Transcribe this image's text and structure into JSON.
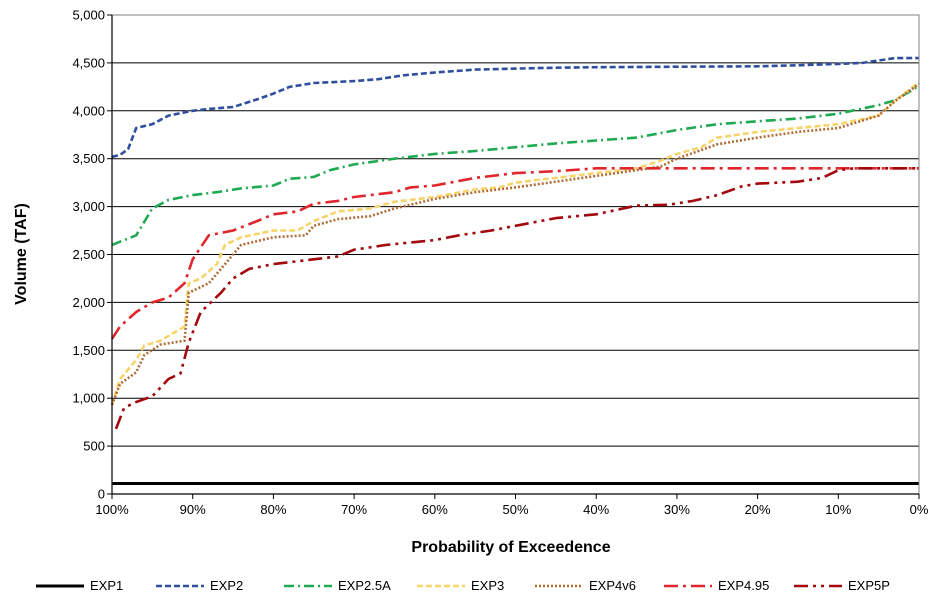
{
  "chart_data": {
    "type": "line",
    "title": "",
    "xlabel": "Probability of Exceedence",
    "ylabel": "Volume (TAF)",
    "xlim": [
      100,
      0
    ],
    "ylim": [
      0,
      5000
    ],
    "x_reversed": true,
    "grid": "horizontal",
    "legend_position": "bottom",
    "x_ticks": [
      100,
      90,
      80,
      70,
      60,
      50,
      40,
      30,
      20,
      10,
      0
    ],
    "x_tick_labels": [
      "100%",
      "90%",
      "80%",
      "70%",
      "60%",
      "50%",
      "40%",
      "30%",
      "20%",
      "10%",
      "0%"
    ],
    "y_ticks": [
      0,
      500,
      1000,
      1500,
      2000,
      2500,
      3000,
      3500,
      4000,
      4500,
      5000
    ],
    "y_tick_labels": [
      "0",
      "500",
      "1,000",
      "1,500",
      "2,000",
      "2,500",
      "3,000",
      "3,500",
      "4,000",
      "4,500",
      "5,000"
    ],
    "series": [
      {
        "name": "EXP1",
        "color": "#000000",
        "dash": "solid",
        "points": [
          [
            100,
            110
          ],
          [
            0,
            110
          ]
        ]
      },
      {
        "name": "EXP2",
        "color": "#2f4f9e",
        "dash": "dash",
        "points": [
          [
            100,
            3520
          ],
          [
            99,
            3540
          ],
          [
            98,
            3600
          ],
          [
            97,
            3820
          ],
          [
            95,
            3860
          ],
          [
            93,
            3950
          ],
          [
            90,
            4000
          ],
          [
            88,
            4020
          ],
          [
            85,
            4040
          ],
          [
            82,
            4120
          ],
          [
            80,
            4180
          ],
          [
            78,
            4250
          ],
          [
            75,
            4290
          ],
          [
            70,
            4310
          ],
          [
            67,
            4330
          ],
          [
            64,
            4370
          ],
          [
            60,
            4400
          ],
          [
            55,
            4430
          ],
          [
            50,
            4440
          ],
          [
            45,
            4450
          ],
          [
            40,
            4455
          ],
          [
            30,
            4460
          ],
          [
            20,
            4465
          ],
          [
            15,
            4475
          ],
          [
            10,
            4490
          ],
          [
            7,
            4500
          ],
          [
            3,
            4550
          ],
          [
            0,
            4550
          ]
        ]
      },
      {
        "name": "EXP2.5A",
        "color": "#1faa52",
        "dash": "dashdot",
        "points": [
          [
            100,
            2600
          ],
          [
            97,
            2700
          ],
          [
            95,
            2980
          ],
          [
            93,
            3070
          ],
          [
            90,
            3120
          ],
          [
            87,
            3150
          ],
          [
            84,
            3190
          ],
          [
            80,
            3220
          ],
          [
            78,
            3290
          ],
          [
            75,
            3310
          ],
          [
            73,
            3380
          ],
          [
            70,
            3440
          ],
          [
            65,
            3500
          ],
          [
            60,
            3550
          ],
          [
            55,
            3580
          ],
          [
            50,
            3620
          ],
          [
            45,
            3660
          ],
          [
            40,
            3690
          ],
          [
            35,
            3720
          ],
          [
            30,
            3800
          ],
          [
            25,
            3860
          ],
          [
            20,
            3890
          ],
          [
            15,
            3920
          ],
          [
            10,
            3970
          ],
          [
            5,
            4060
          ],
          [
            3,
            4110
          ],
          [
            0,
            4260
          ]
        ]
      },
      {
        "name": "EXP3",
        "color": "#f7d46a",
        "dash": "dash",
        "points": [
          [
            100,
            930
          ],
          [
            99,
            1200
          ],
          [
            97,
            1400
          ],
          [
            96,
            1550
          ],
          [
            94,
            1600
          ],
          [
            92,
            1700
          ],
          [
            91,
            1750
          ],
          [
            90.5,
            2200
          ],
          [
            89,
            2250
          ],
          [
            87,
            2400
          ],
          [
            86,
            2600
          ],
          [
            84,
            2680
          ],
          [
            80,
            2750
          ],
          [
            77,
            2750
          ],
          [
            75,
            2850
          ],
          [
            72,
            2950
          ],
          [
            68,
            2980
          ],
          [
            65,
            3050
          ],
          [
            60,
            3100
          ],
          [
            55,
            3180
          ],
          [
            52,
            3200
          ],
          [
            50,
            3250
          ],
          [
            45,
            3300
          ],
          [
            40,
            3350
          ],
          [
            35,
            3400
          ],
          [
            32,
            3480
          ],
          [
            30,
            3550
          ],
          [
            27,
            3620
          ],
          [
            25,
            3720
          ],
          [
            20,
            3780
          ],
          [
            15,
            3820
          ],
          [
            10,
            3860
          ],
          [
            5,
            3950
          ],
          [
            3,
            4100
          ],
          [
            0,
            4300
          ]
        ]
      },
      {
        "name": "EXP4v6",
        "color": "#b06c36",
        "dash": "dot",
        "points": [
          [
            100,
            930
          ],
          [
            99,
            1150
          ],
          [
            97,
            1270
          ],
          [
            96,
            1450
          ],
          [
            94,
            1560
          ],
          [
            91,
            1600
          ],
          [
            90.5,
            2100
          ],
          [
            88,
            2200
          ],
          [
            86,
            2400
          ],
          [
            84,
            2600
          ],
          [
            80,
            2680
          ],
          [
            76,
            2700
          ],
          [
            75,
            2800
          ],
          [
            72,
            2870
          ],
          [
            68,
            2900
          ],
          [
            65,
            2980
          ],
          [
            60,
            3080
          ],
          [
            55,
            3150
          ],
          [
            50,
            3200
          ],
          [
            45,
            3260
          ],
          [
            40,
            3320
          ],
          [
            35,
            3380
          ],
          [
            32,
            3420
          ],
          [
            30,
            3500
          ],
          [
            28,
            3560
          ],
          [
            25,
            3650
          ],
          [
            20,
            3720
          ],
          [
            15,
            3780
          ],
          [
            10,
            3820
          ],
          [
            5,
            3950
          ],
          [
            3,
            4100
          ],
          [
            0,
            4280
          ]
        ]
      },
      {
        "name": "EXP4.95",
        "color": "#e0262b",
        "dash": "longdashdot",
        "points": [
          [
            100,
            1620
          ],
          [
            99,
            1750
          ],
          [
            97,
            1900
          ],
          [
            95,
            2000
          ],
          [
            93,
            2050
          ],
          [
            91,
            2200
          ],
          [
            90,
            2450
          ],
          [
            88,
            2700
          ],
          [
            85,
            2750
          ],
          [
            82,
            2850
          ],
          [
            80,
            2920
          ],
          [
            77,
            2950
          ],
          [
            75,
            3030
          ],
          [
            72,
            3060
          ],
          [
            70,
            3100
          ],
          [
            65,
            3150
          ],
          [
            63,
            3200
          ],
          [
            60,
            3220
          ],
          [
            55,
            3300
          ],
          [
            50,
            3350
          ],
          [
            45,
            3370
          ],
          [
            40,
            3400
          ],
          [
            30,
            3400
          ],
          [
            20,
            3400
          ],
          [
            10,
            3400
          ],
          [
            0,
            3400
          ]
        ]
      },
      {
        "name": "EXP5P",
        "color": "#a3080c",
        "dash": "longdashdotdot",
        "points": [
          [
            99.5,
            680
          ],
          [
            98.5,
            900
          ],
          [
            97,
            960
          ],
          [
            95,
            1020
          ],
          [
            93,
            1200
          ],
          [
            91.5,
            1260
          ],
          [
            90.5,
            1580
          ],
          [
            89,
            1900
          ],
          [
            86.5,
            2100
          ],
          [
            85,
            2250
          ],
          [
            83,
            2350
          ],
          [
            80,
            2400
          ],
          [
            78,
            2420
          ],
          [
            75,
            2450
          ],
          [
            72,
            2480
          ],
          [
            70,
            2550
          ],
          [
            66,
            2600
          ],
          [
            60,
            2650
          ],
          [
            57,
            2700
          ],
          [
            53,
            2750
          ],
          [
            50,
            2800
          ],
          [
            45,
            2880
          ],
          [
            40,
            2920
          ],
          [
            35,
            3010
          ],
          [
            31,
            3020
          ],
          [
            28,
            3060
          ],
          [
            25,
            3120
          ],
          [
            22,
            3210
          ],
          [
            20,
            3240
          ],
          [
            15,
            3260
          ],
          [
            12,
            3300
          ],
          [
            10,
            3380
          ],
          [
            8,
            3400
          ],
          [
            0,
            3400
          ]
        ]
      }
    ]
  }
}
